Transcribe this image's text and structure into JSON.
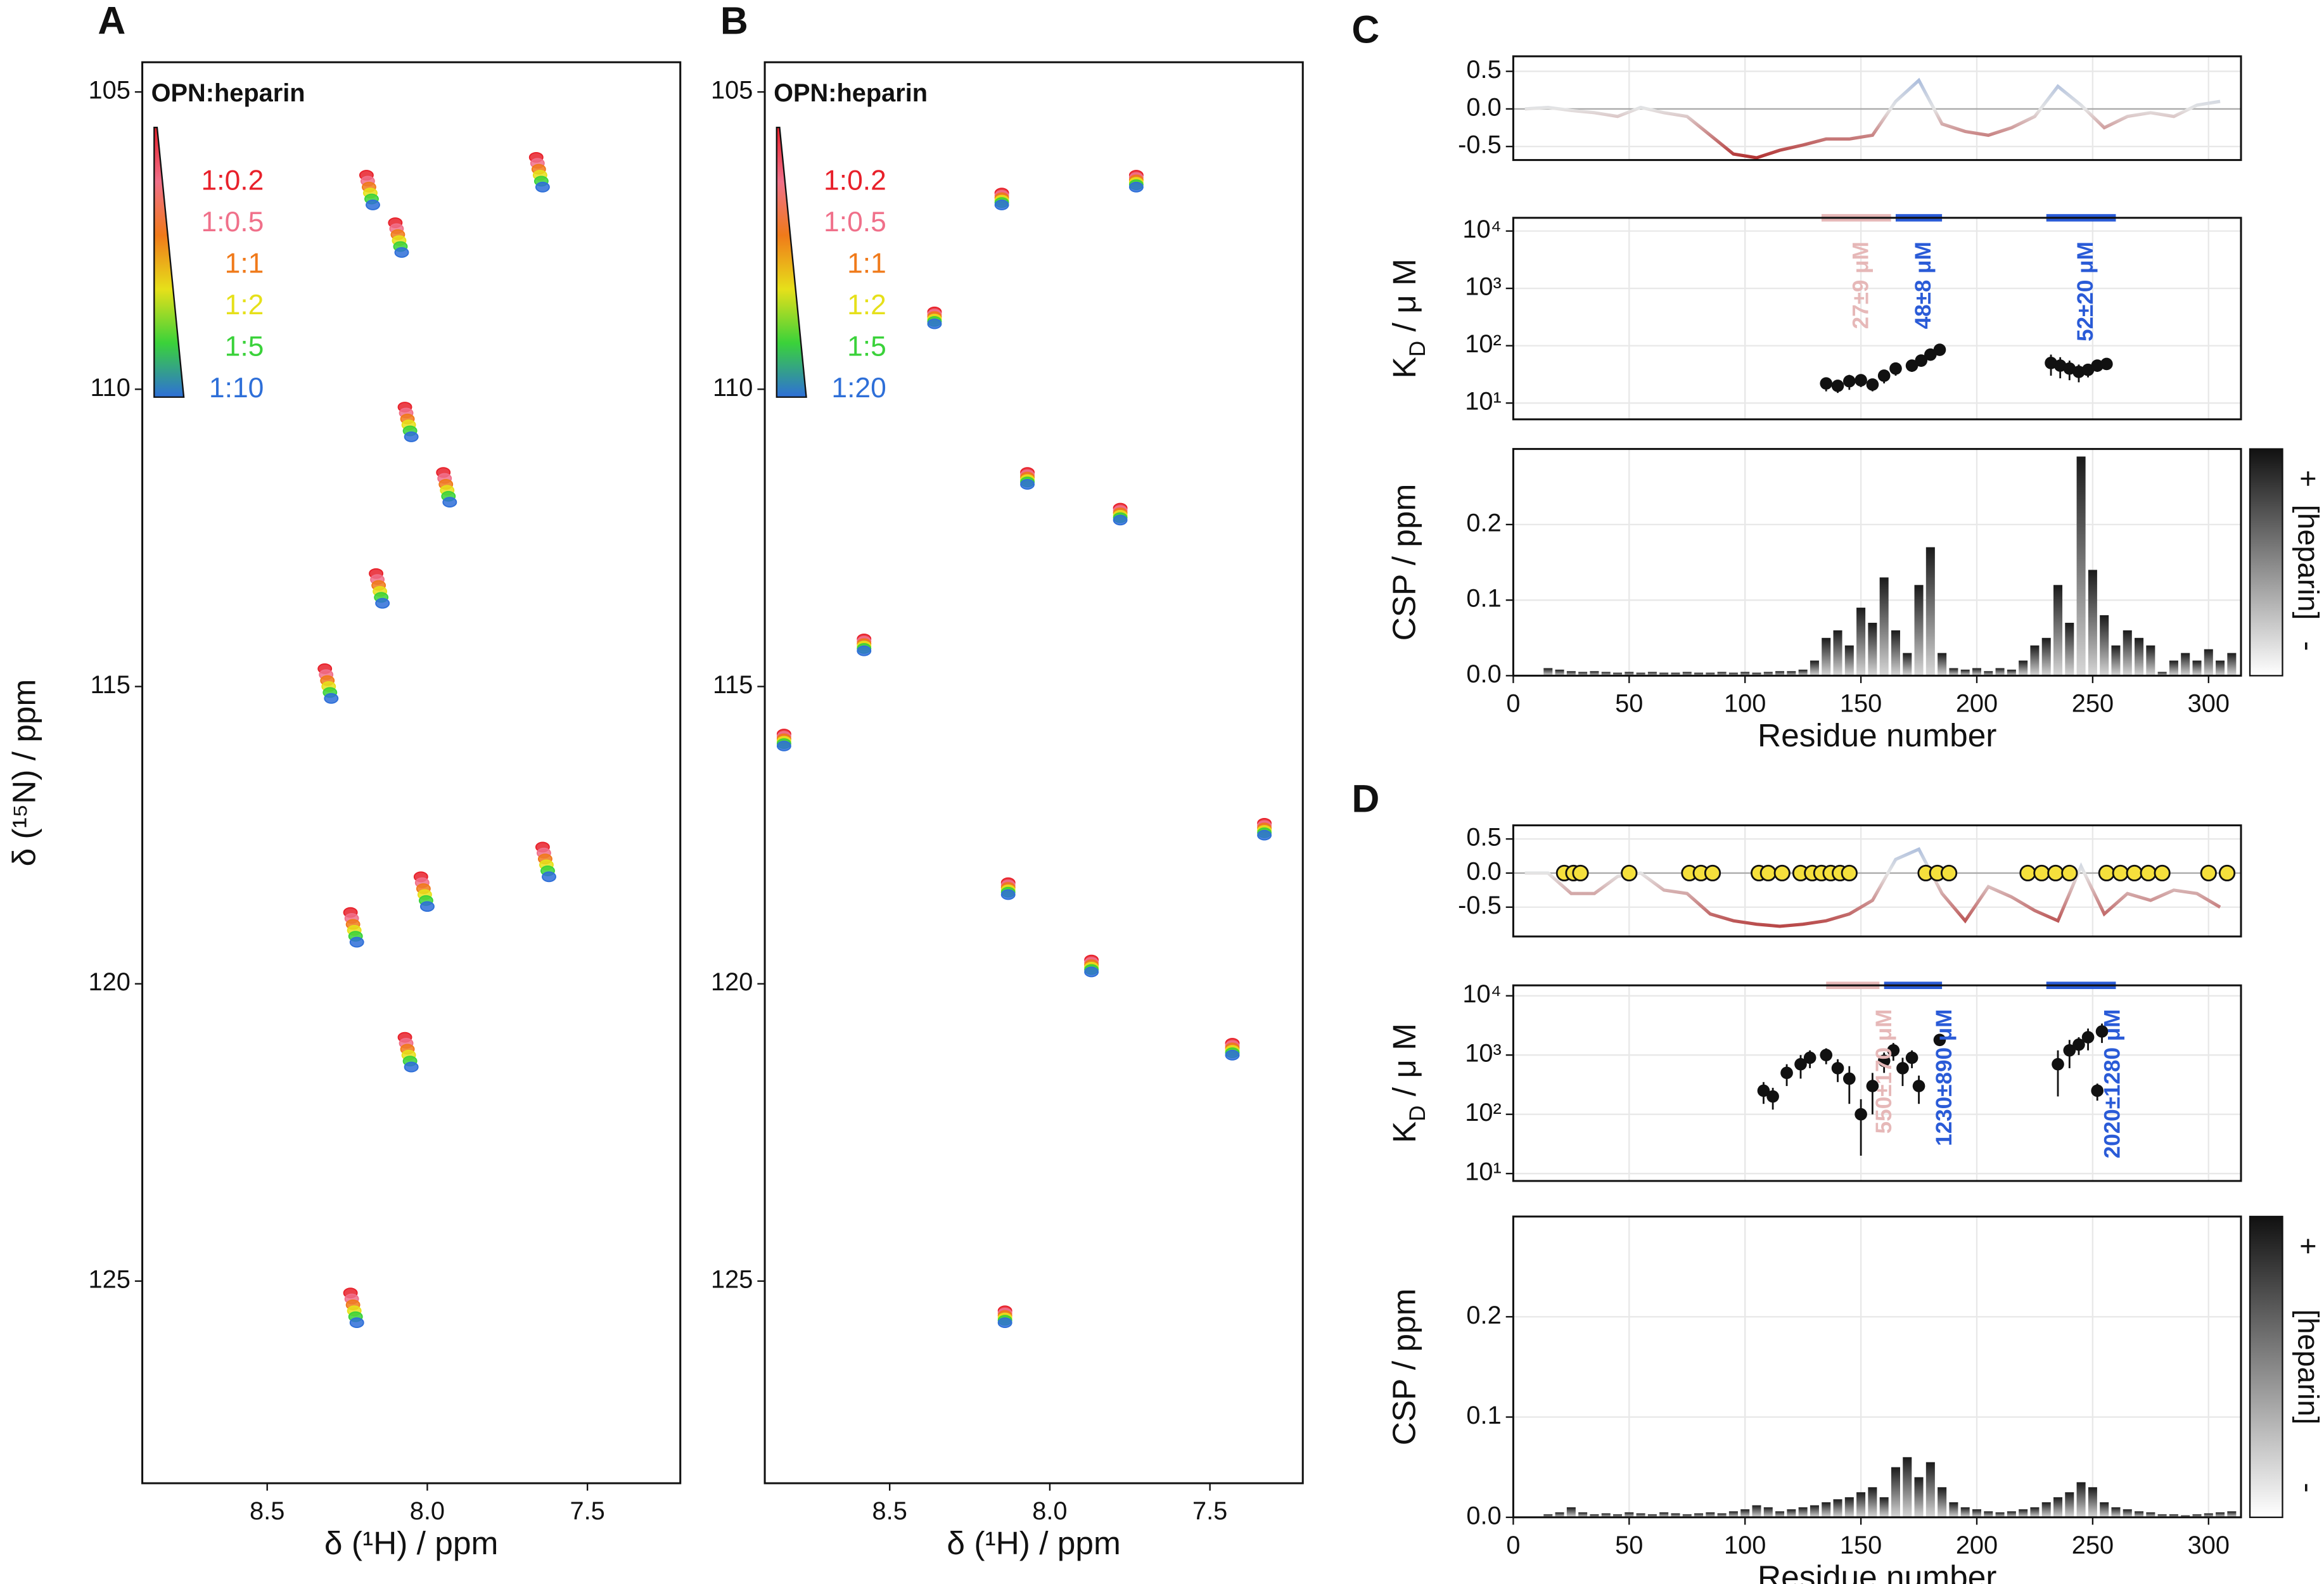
{
  "chart_data": [
    {
      "type": "scatter",
      "panel": "A",
      "title": "OPN:heparin",
      "xlabel": "δ (¹H) / ppm",
      "ylabel": "δ (¹⁵N) / ppm",
      "xlim": [
        8.89,
        7.21
      ],
      "ylim": [
        128.4,
        104.5
      ],
      "xticks": [
        8.5,
        {
          "value": 8,
          "label": "8.0"
        },
        7.5
      ],
      "yticks": [
        105,
        110,
        115,
        120,
        125
      ],
      "series": [
        {
          "name": "1:0.2",
          "color": "#e8202a",
          "x": [
            8.19,
            7.66,
            8.1,
            8.07,
            7.95,
            8.16,
            8.32,
            8.02,
            8.24,
            7.64,
            8.07,
            8.24
          ],
          "values": [
            106.4,
            106.1,
            107.2,
            110.3,
            111.4,
            113.1,
            114.7,
            118.2,
            118.8,
            117.7,
            120.9,
            125.2
          ]
        },
        {
          "name": "1:0.5",
          "color": "#f0708a",
          "x": [
            8.186,
            7.656,
            8.096,
            8.066,
            7.946,
            8.156,
            8.316,
            8.016,
            8.236,
            7.636,
            8.066,
            8.236
          ],
          "values": [
            106.5,
            106.2,
            107.3,
            110.4,
            111.5,
            113.2,
            114.8,
            118.3,
            118.9,
            117.8,
            121.0,
            125.3
          ]
        },
        {
          "name": "1:1",
          "color": "#f07a1a",
          "x": [
            8.182,
            7.652,
            8.092,
            8.062,
            7.942,
            8.152,
            8.312,
            8.012,
            8.232,
            7.632,
            8.062,
            8.232
          ],
          "values": [
            106.6,
            106.3,
            107.4,
            110.5,
            111.6,
            113.3,
            114.9,
            118.4,
            119.0,
            117.9,
            121.1,
            125.4
          ]
        },
        {
          "name": "1:2",
          "color": "#e6e01a",
          "x": [
            8.178,
            7.648,
            8.088,
            8.058,
            7.938,
            8.148,
            8.308,
            8.008,
            8.228,
            7.628,
            8.058,
            8.228
          ],
          "values": [
            106.7,
            106.4,
            107.5,
            110.6,
            111.7,
            113.4,
            115.0,
            118.5,
            119.1,
            118.0,
            121.2,
            125.5
          ]
        },
        {
          "name": "1:5",
          "color": "#3ad23a",
          "x": [
            8.174,
            7.644,
            8.084,
            8.054,
            7.934,
            8.144,
            8.304,
            8.004,
            8.224,
            7.624,
            8.054,
            8.224
          ],
          "values": [
            106.8,
            106.5,
            107.6,
            110.7,
            111.8,
            113.5,
            115.1,
            118.6,
            119.2,
            118.1,
            121.3,
            125.6
          ]
        },
        {
          "name": "1:10",
          "color": "#2e6fd8",
          "x": [
            8.17,
            7.64,
            8.08,
            8.05,
            7.93,
            8.14,
            8.3,
            8.0,
            8.22,
            7.62,
            8.05,
            8.22
          ],
          "values": [
            106.9,
            106.6,
            107.7,
            110.8,
            111.9,
            113.6,
            115.2,
            118.7,
            119.3,
            118.2,
            121.4,
            125.7
          ]
        }
      ]
    },
    {
      "type": "scatter",
      "panel": "B",
      "title": "OPN:heparin",
      "xlabel": "δ (¹H) / ppm",
      "xlim": [
        8.89,
        7.21
      ],
      "ylim": [
        128.4,
        104.5
      ],
      "xticks": [
        8.5,
        {
          "value": 8,
          "label": "8.0"
        },
        7.5
      ],
      "yticks": [
        105,
        110,
        115,
        120,
        125
      ],
      "series": [
        {
          "name": "1:0.2",
          "color": "#e8202a",
          "x": [
            8.15,
            7.73,
            8.36,
            8.07,
            7.78,
            8.58,
            8.83,
            8.13,
            7.87,
            7.33,
            7.43,
            8.14
          ],
          "values": [
            106.7,
            106.4,
            108.7,
            111.4,
            112.0,
            114.2,
            115.8,
            118.3,
            119.6,
            117.3,
            121.0,
            125.5
          ]
        },
        {
          "name": "1:0.5",
          "color": "#f0708a",
          "x": [
            8.15,
            7.73,
            8.36,
            8.07,
            7.78,
            8.58,
            8.83,
            8.13,
            7.87,
            7.33,
            7.43,
            8.14
          ],
          "values": [
            106.74,
            106.44,
            108.74,
            111.44,
            112.04,
            114.24,
            115.84,
            118.34,
            119.64,
            117.34,
            121.04,
            125.54
          ]
        },
        {
          "name": "1:1",
          "color": "#f07a1a",
          "x": [
            8.15,
            7.73,
            8.36,
            8.07,
            7.78,
            8.58,
            8.83,
            8.13,
            7.87,
            7.33,
            7.43,
            8.14
          ],
          "values": [
            106.78,
            106.48,
            108.78,
            111.48,
            112.08,
            114.28,
            115.88,
            118.38,
            119.68,
            117.38,
            121.08,
            125.58
          ]
        },
        {
          "name": "1:2",
          "color": "#e6e01a",
          "x": [
            8.15,
            7.73,
            8.36,
            8.07,
            7.78,
            8.58,
            8.83,
            8.13,
            7.87,
            7.33,
            7.43,
            8.14
          ],
          "values": [
            106.82,
            106.52,
            108.82,
            111.52,
            112.12,
            114.32,
            115.92,
            118.42,
            119.72,
            117.42,
            121.12,
            125.62
          ]
        },
        {
          "name": "1:5",
          "color": "#3ad23a",
          "x": [
            8.15,
            7.73,
            8.36,
            8.07,
            7.78,
            8.58,
            8.83,
            8.13,
            7.87,
            7.33,
            7.43,
            8.14
          ],
          "values": [
            106.86,
            106.56,
            108.86,
            111.56,
            112.16,
            114.36,
            115.96,
            118.46,
            119.76,
            117.46,
            121.16,
            125.66
          ]
        },
        {
          "name": "1:20",
          "color": "#2e6fd8",
          "x": [
            8.15,
            7.73,
            8.36,
            8.07,
            7.78,
            8.58,
            8.83,
            8.13,
            7.87,
            7.33,
            7.43,
            8.14
          ],
          "values": [
            106.9,
            106.6,
            108.9,
            111.6,
            112.2,
            114.4,
            116.0,
            118.5,
            119.8,
            117.5,
            121.2,
            125.7
          ]
        }
      ]
    },
    {
      "type": "line",
      "panel": "C",
      "ylim": [
        -0.68,
        0.7
      ],
      "yticks": [
        0.5,
        {
          "value": 0,
          "label": "0.0"
        },
        -0.5
      ],
      "positive_color": "#7f9fd8",
      "negative_color": "#b02a2a",
      "x": [
        5,
        15,
        25,
        35,
        45,
        55,
        65,
        75,
        85,
        95,
        105,
        115,
        125,
        135,
        145,
        155,
        165,
        175,
        185,
        195,
        205,
        215,
        225,
        235,
        245,
        255,
        265,
        275,
        285,
        295,
        305
      ],
      "values": [
        0.0,
        0.02,
        -0.02,
        -0.05,
        -0.1,
        0.02,
        -0.05,
        -0.1,
        -0.35,
        -0.6,
        -0.65,
        -0.55,
        -0.48,
        -0.4,
        -0.4,
        -0.35,
        0.1,
        0.38,
        -0.2,
        -0.3,
        -0.35,
        -0.25,
        -0.1,
        0.3,
        0.05,
        -0.25,
        -0.1,
        -0.05,
        -0.1,
        0.05,
        0.1
      ]
    },
    {
      "type": "errorbar",
      "ylabel_parts": [
        "K",
        "D",
        " / μ M"
      ],
      "log_y": true,
      "ylim": [
        5.2,
        17000
      ],
      "yticks": [
        {
          "value": 10,
          "label": "10¹"
        },
        {
          "value": 100,
          "label": "10²"
        },
        {
          "value": 1000,
          "label": "10³"
        },
        {
          "value": 10000,
          "label": "10⁴"
        }
      ],
      "x": [
        135,
        140,
        145,
        150,
        155,
        160,
        165,
        172,
        176,
        180,
        184,
        232,
        236,
        240,
        244,
        248,
        252,
        256
      ],
      "values": [
        22,
        20,
        24,
        25,
        21,
        30,
        40,
        45,
        55,
        70,
        85,
        50,
        45,
        40,
        35,
        38,
        45,
        48
      ],
      "errors": [
        6,
        5,
        7,
        6,
        5,
        8,
        10,
        10,
        12,
        15,
        18,
        20,
        18,
        15,
        12,
        10,
        10,
        10
      ],
      "fits": [
        {
          "label": "27±9 μM",
          "start": 133,
          "end": 163,
          "color": "#e6b8b8"
        },
        {
          "label": "48±8 μM",
          "start": 165,
          "end": 185,
          "color": "#2a5bd7"
        },
        {
          "label": "52±20 μM",
          "start": 230,
          "end": 260,
          "color": "#2a5bd7"
        }
      ]
    },
    {
      "type": "bar",
      "ylabel": "CSP / ppm",
      "xlabel": "Residue number",
      "xlim": [
        0,
        314
      ],
      "ylim": [
        0,
        0.3
      ],
      "xticks": [
        0,
        50,
        100,
        150,
        200,
        250,
        300
      ],
      "yticks": [
        {
          "value": 0,
          "label": "0.0"
        },
        0.1,
        0.2
      ],
      "colorbar_labels": [
        "+",
        "[heparin]",
        "-"
      ],
      "x": [
        15,
        20,
        25,
        30,
        35,
        40,
        45,
        50,
        55,
        60,
        65,
        70,
        75,
        80,
        85,
        90,
        95,
        100,
        105,
        110,
        115,
        120,
        125,
        130,
        135,
        140,
        145,
        150,
        155,
        160,
        165,
        170,
        175,
        180,
        185,
        190,
        195,
        200,
        205,
        210,
        215,
        220,
        225,
        230,
        235,
        240,
        245,
        250,
        255,
        260,
        265,
        270,
        275,
        280,
        285,
        290,
        295,
        300,
        305,
        310
      ],
      "values": [
        0.01,
        0.008,
        0.006,
        0.005,
        0.006,
        0.005,
        0.004,
        0.005,
        0.004,
        0.005,
        0.004,
        0.004,
        0.005,
        0.004,
        0.004,
        0.005,
        0.004,
        0.005,
        0.004,
        0.005,
        0.006,
        0.006,
        0.008,
        0.02,
        0.05,
        0.06,
        0.04,
        0.09,
        0.07,
        0.13,
        0.06,
        0.03,
        0.12,
        0.17,
        0.03,
        0.01,
        0.008,
        0.01,
        0.006,
        0.01,
        0.008,
        0.02,
        0.04,
        0.05,
        0.12,
        0.07,
        0.29,
        0.14,
        0.08,
        0.04,
        0.06,
        0.05,
        0.04,
        0.005,
        0.02,
        0.03,
        0.02,
        0.035,
        0.02,
        0.03
      ]
    },
    {
      "type": "line",
      "panel": "D",
      "ylim": [
        -0.93,
        0.7
      ],
      "yticks": [
        0.5,
        {
          "value": 0,
          "label": "0.0"
        },
        -0.5
      ],
      "positive_color": "#7f9fd8",
      "negative_color": "#b02a2a",
      "x": [
        5,
        15,
        25,
        35,
        45,
        55,
        65,
        75,
        85,
        95,
        105,
        115,
        125,
        135,
        145,
        155,
        165,
        175,
        185,
        195,
        205,
        215,
        225,
        235,
        245,
        255,
        265,
        275,
        285,
        295,
        305
      ],
      "values": [
        0.0,
        0.0,
        -0.3,
        -0.3,
        -0.05,
        0.0,
        -0.25,
        -0.3,
        -0.6,
        -0.7,
        -0.75,
        -0.78,
        -0.75,
        -0.7,
        -0.6,
        -0.4,
        0.2,
        0.35,
        -0.3,
        -0.7,
        -0.2,
        -0.35,
        -0.55,
        -0.7,
        0.1,
        -0.6,
        -0.3,
        -0.4,
        -0.25,
        -0.3,
        -0.5
      ],
      "markers": {
        "color": "#f5e03c",
        "x": [
          22,
          26,
          29,
          50,
          76,
          81,
          86,
          106,
          110,
          116,
          124,
          129,
          133,
          137,
          141,
          145,
          178,
          183,
          188,
          222,
          228,
          234,
          240,
          256,
          262,
          268,
          274,
          280,
          300,
          308
        ],
        "values": [
          0,
          0,
          0,
          0,
          0,
          0,
          0,
          0,
          0,
          0,
          0,
          0,
          0,
          0,
          0,
          0,
          0,
          0,
          0,
          0,
          0,
          0,
          0,
          0,
          0,
          0,
          0,
          0,
          0,
          0
        ]
      }
    },
    {
      "type": "errorbar",
      "ylabel_parts": [
        "K",
        "D",
        " / μ M"
      ],
      "log_y": true,
      "ylim": [
        7.5,
        15000
      ],
      "yticks": [
        {
          "value": 10,
          "label": "10¹"
        },
        {
          "value": 100,
          "label": "10²"
        },
        {
          "value": 1000,
          "label": "10³"
        },
        {
          "value": 10000,
          "label": "10⁴"
        }
      ],
      "x": [
        108,
        112,
        118,
        124,
        128,
        135,
        140,
        145,
        150,
        155,
        160,
        164,
        168,
        172,
        175,
        184,
        235,
        240,
        244,
        248,
        252,
        254
      ],
      "values": [
        250,
        200,
        500,
        700,
        900,
        1000,
        600,
        400,
        100,
        300,
        800,
        1200,
        600,
        900,
        300,
        1800,
        700,
        1200,
        1500,
        2000,
        250,
        2500
      ],
      "errors": [
        100,
        80,
        200,
        300,
        300,
        300,
        250,
        250,
        80,
        200,
        300,
        400,
        300,
        300,
        150,
        300,
        500,
        600,
        500,
        800,
        80,
        900
      ],
      "fits": [
        {
          "label": "550±170 μM",
          "start": 135,
          "end": 158,
          "color": "#e6b8b8"
        },
        {
          "label": "1230±890 μM",
          "start": 160,
          "end": 185,
          "color": "#2a5bd7"
        },
        {
          "label": "2020±1280 μM",
          "start": 230,
          "end": 260,
          "color": "#2a5bd7"
        }
      ]
    },
    {
      "type": "bar",
      "ylabel": "CSP / ppm",
      "xlabel": "Residue number",
      "xlim": [
        0,
        314
      ],
      "ylim": [
        0,
        0.3
      ],
      "xticks": [
        0,
        50,
        100,
        150,
        200,
        250,
        300
      ],
      "yticks": [
        {
          "value": 0,
          "label": "0.0"
        },
        0.1,
        0.2
      ],
      "colorbar_labels": [
        "+",
        "[heparin]",
        "-"
      ],
      "x": [
        15,
        20,
        25,
        30,
        35,
        40,
        45,
        50,
        55,
        60,
        65,
        70,
        75,
        80,
        85,
        90,
        95,
        100,
        105,
        110,
        115,
        120,
        125,
        130,
        135,
        140,
        145,
        150,
        155,
        160,
        165,
        170,
        175,
        180,
        185,
        190,
        195,
        200,
        205,
        210,
        215,
        220,
        225,
        230,
        235,
        240,
        245,
        250,
        255,
        260,
        265,
        270,
        275,
        280,
        285,
        290,
        295,
        300,
        305,
        310
      ],
      "values": [
        0.003,
        0.005,
        0.01,
        0.005,
        0.003,
        0.004,
        0.003,
        0.005,
        0.004,
        0.003,
        0.005,
        0.004,
        0.003,
        0.004,
        0.005,
        0.004,
        0.006,
        0.008,
        0.012,
        0.01,
        0.006,
        0.008,
        0.01,
        0.012,
        0.015,
        0.018,
        0.02,
        0.025,
        0.03,
        0.02,
        0.05,
        0.06,
        0.04,
        0.055,
        0.03,
        0.015,
        0.01,
        0.008,
        0.006,
        0.005,
        0.006,
        0.008,
        0.01,
        0.015,
        0.02,
        0.025,
        0.035,
        0.03,
        0.015,
        0.01,
        0.008,
        0.006,
        0.005,
        0.003,
        0.003,
        0.002,
        0.003,
        0.004,
        0.005,
        0.006
      ]
    }
  ]
}
